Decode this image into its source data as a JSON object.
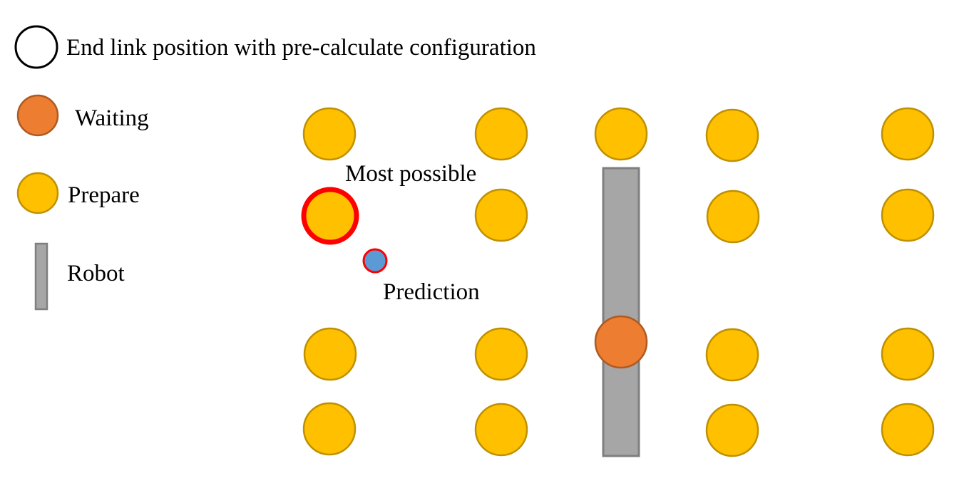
{
  "legend": {
    "end_link": "End link position with pre-calculate configuration",
    "waiting": "Waiting",
    "prepare": "Prepare",
    "robot": "Robot"
  },
  "annotations": {
    "most_possible": "Most possible",
    "prediction": "Prediction"
  },
  "colors": {
    "prepare_fill": "#FFC000",
    "prepare_stroke": "#BF9000",
    "waiting_fill": "#ED7D31",
    "waiting_stroke": "#AE5A21",
    "robot_fill": "#A6A6A6",
    "robot_stroke": "#7F7F7F",
    "highlight_stroke": "#FF0000",
    "prediction_fill": "#5B9BD5",
    "end_link_stroke": "#000000"
  }
}
